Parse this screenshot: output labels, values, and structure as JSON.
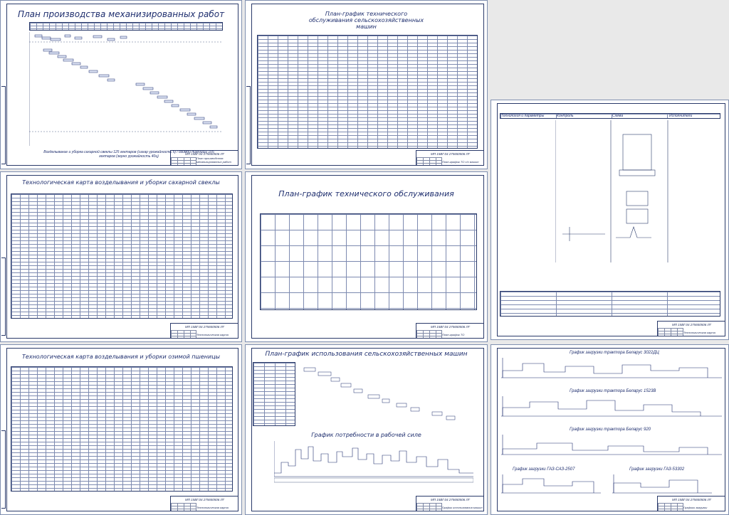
{
  "sheets": {
    "s1": {
      "title": "План производства механизированных работ",
      "note": "Возделывание и уборка сахарной свеклы 125 гектаров (сахар урожайность 5) / озимой пшеницы 105 гектаров (зерно урожайность 40ц)",
      "code": "МП 15ВГ.04 275650506 ЛГ",
      "name": "План производства механизированных работ"
    },
    "s2": {
      "title": "План-график технического обслуживания сельскохозяйственных машин",
      "code": "МП 15ВГ.04 275650506 ЛГ",
      "name": "План-график ТО с/х машин"
    },
    "s3": {
      "code": "МП 15ВГ.04 275650506 ЛГ",
      "name": "Технологическая карта",
      "col1": "Технология и параметры",
      "col2": "Контроль",
      "col3": "Схема",
      "col4": "Исполнители"
    },
    "s4": {
      "title": "Технологическая карта возделывания и уборки сахарной свеклы",
      "code": "МП 15ВГ.04 275650506 ЛГ",
      "name": "Технологическая карта"
    },
    "s5": {
      "title": "План-график технического обслуживания",
      "code": "МП 15ВГ.04 275650506 ЛГ",
      "name": "План-график ТО"
    },
    "s6": {
      "title": "Технологическая карта возделывания и уборки озимой пшеницы",
      "code": "МП 15ВГ.04 275650506 ЛГ",
      "name": "Технологическая карта"
    },
    "s7": {
      "title": "План-график использования сельскохозяйственных машин",
      "subtitle": "График потребности в рабочей силе",
      "code": "МП 15ВГ.04 275650506 ЛГ",
      "name": "График использования машин"
    },
    "s8": {
      "charts": [
        "График загрузки трактора Беларус 3022ДЦ",
        "График загрузки трактора Беларус 1523В",
        "График загрузки трактора Беларус 920",
        "График загрузки ГАЗ-САЗ-2507",
        "График загрузки ГАЗ-53302"
      ],
      "code": "МП 15ВГ.04 275650506 ЛГ",
      "name": "Графики загрузки"
    }
  },
  "colors": {
    "paper": "#ffffff",
    "line": "#2a3a6a",
    "ink": "#1e2e6e",
    "background": "#e9e9e9"
  }
}
